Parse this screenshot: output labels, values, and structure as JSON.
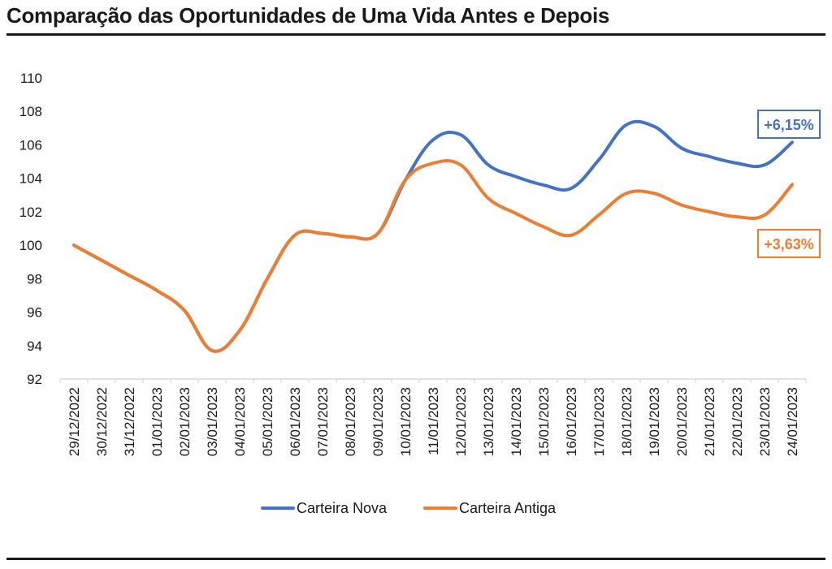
{
  "chart_data": {
    "type": "line",
    "title": "Comparação das Oportunidades de Uma Vida Antes e Depois",
    "xlabel": "",
    "ylabel": "",
    "ylim": [
      92,
      110
    ],
    "y_ticks": [
      "92",
      "94",
      "96",
      "98",
      "100",
      "102",
      "104",
      "106",
      "108",
      "110"
    ],
    "grid": false,
    "legend_position": "bottom",
    "categories": [
      "29/12/2022",
      "30/12/2022",
      "31/12/2022",
      "01/01/2023",
      "02/01/2023",
      "03/01/2023",
      "04/01/2023",
      "05/01/2023",
      "06/01/2023",
      "07/01/2023",
      "08/01/2023",
      "09/01/2023",
      "10/01/2023",
      "11/01/2023",
      "12/01/2023",
      "13/01/2023",
      "14/01/2023",
      "15/01/2023",
      "16/01/2023",
      "17/01/2023",
      "18/01/2023",
      "19/01/2023",
      "20/01/2023",
      "21/01/2023",
      "22/01/2023",
      "23/01/2023",
      "24/01/2023"
    ],
    "series": [
      {
        "name": "Carteira Nova",
        "color": "#4472c4",
        "values": [
          100.0,
          99.1,
          98.2,
          97.3,
          96.1,
          93.7,
          94.9,
          98.0,
          100.6,
          100.7,
          100.5,
          100.7,
          103.9,
          106.3,
          106.6,
          104.8,
          104.1,
          103.6,
          103.4,
          105.1,
          107.2,
          107.1,
          105.8,
          105.3,
          104.9,
          104.8,
          106.15
        ],
        "end_label": "+6,15%"
      },
      {
        "name": "Carteira Antiga",
        "color": "#ed7d31",
        "values": [
          100.0,
          99.1,
          98.2,
          97.3,
          96.1,
          93.7,
          94.9,
          98.0,
          100.6,
          100.7,
          100.5,
          100.7,
          103.9,
          104.9,
          104.8,
          102.8,
          101.9,
          101.1,
          100.6,
          101.8,
          103.1,
          103.1,
          102.4,
          102.0,
          101.7,
          101.8,
          103.63
        ],
        "end_label": "+3,63%"
      }
    ]
  }
}
